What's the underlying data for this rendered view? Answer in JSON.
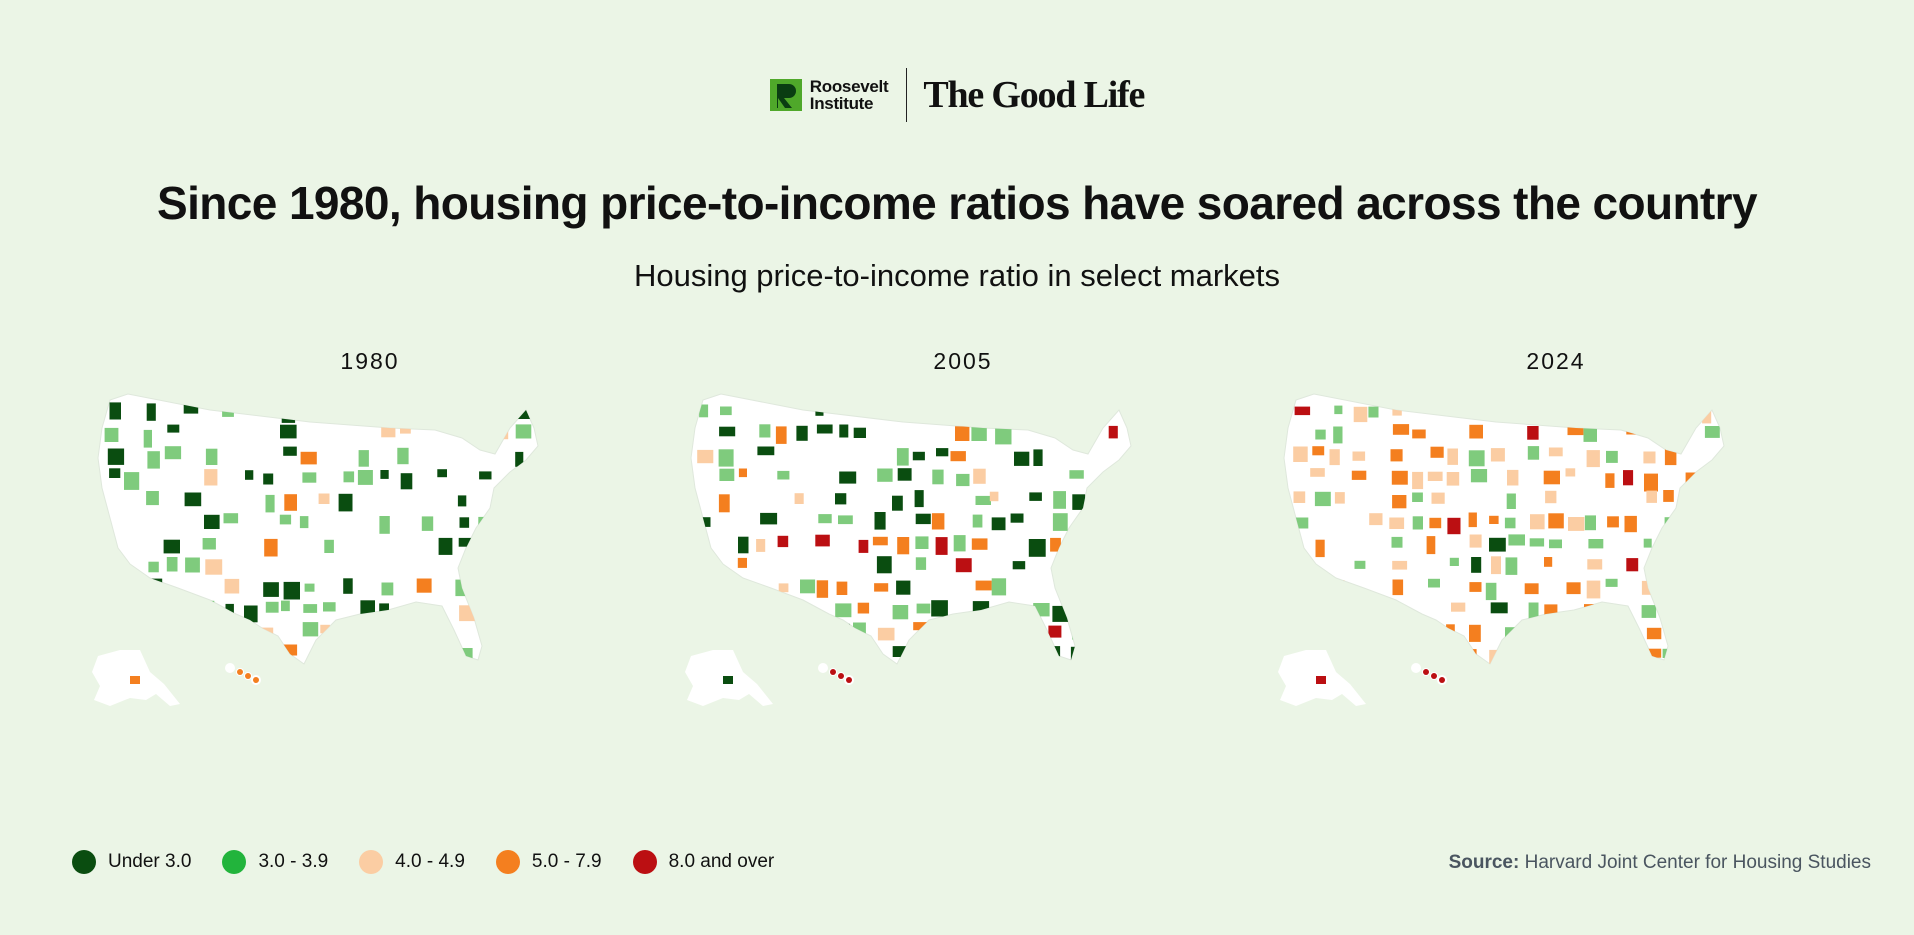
{
  "header": {
    "brand_line1": "Roosevelt",
    "brand_line2": "Institute",
    "publication": "The Good Life"
  },
  "title": "Since 1980, housing price-to-income ratios have soared across the country",
  "subtitle": "Housing price-to-income ratio in select markets",
  "maps": [
    {
      "year": "1980",
      "weights": [
        0.42,
        0.4,
        0.13,
        0.05,
        0.0
      ]
    },
    {
      "year": "2005",
      "weights": [
        0.38,
        0.3,
        0.14,
        0.12,
        0.06
      ]
    },
    {
      "year": "2024",
      "weights": [
        0.05,
        0.35,
        0.3,
        0.22,
        0.08
      ]
    }
  ],
  "legend": {
    "items": [
      {
        "label": "Under 3.0",
        "color": "#0a4d10"
      },
      {
        "label": "3.0 - 3.9",
        "color": "#22b43c"
      },
      {
        "label": "4.0 - 4.9",
        "color": "#fbcda3"
      },
      {
        "label": "5.0 - 7.9",
        "color": "#f47f1f"
      },
      {
        "label": "8.0 and over",
        "color": "#bb0f12"
      }
    ]
  },
  "source": {
    "label": "Source:",
    "text": "Harvard Joint Center for Housing Studies"
  },
  "colors": {
    "background": "#ebf5e6",
    "map_land": "#ffffff",
    "light_green_fill": "#7fcb7d"
  }
}
